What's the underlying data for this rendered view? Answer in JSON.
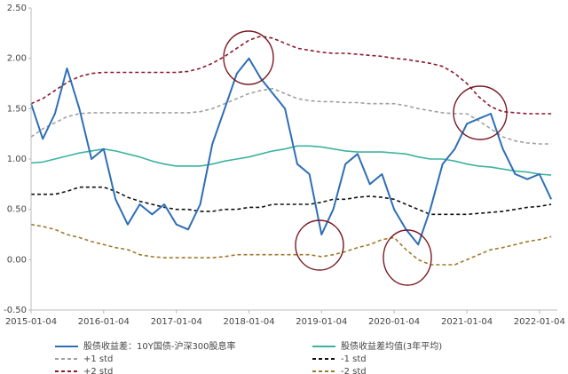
{
  "chart_data": {
    "type": "line",
    "x": [
      "2015-01-04",
      "2015-03-04",
      "2015-05-04",
      "2015-07-04",
      "2015-09-04",
      "2015-11-04",
      "2016-01-04",
      "2016-03-04",
      "2016-05-04",
      "2016-07-04",
      "2016-09-04",
      "2016-11-04",
      "2017-01-04",
      "2017-03-04",
      "2017-05-04",
      "2017-07-04",
      "2017-09-04",
      "2017-11-04",
      "2018-01-04",
      "2018-03-04",
      "2018-05-04",
      "2018-07-04",
      "2018-09-04",
      "2018-11-04",
      "2019-01-04",
      "2019-03-04",
      "2019-05-04",
      "2019-07-04",
      "2019-09-04",
      "2019-11-04",
      "2020-01-04",
      "2020-03-04",
      "2020-05-04",
      "2020-07-04",
      "2020-09-04",
      "2020-11-04",
      "2021-01-04",
      "2021-03-04",
      "2021-05-04",
      "2021-07-04",
      "2021-09-04",
      "2021-11-04",
      "2022-01-04",
      "2022-03-04"
    ],
    "series": [
      {
        "name": "股债收益差：10Y国债-沪深300股息率",
        "color": "#2e6fb5",
        "style": "solid",
        "width": 2,
        "values": [
          1.55,
          1.2,
          1.45,
          1.9,
          1.5,
          1.0,
          1.1,
          0.6,
          0.35,
          0.55,
          0.45,
          0.55,
          0.35,
          0.3,
          0.55,
          1.15,
          1.5,
          1.85,
          2.0,
          1.8,
          1.65,
          1.5,
          0.95,
          0.85,
          0.25,
          0.5,
          0.95,
          1.05,
          0.75,
          0.85,
          0.5,
          0.3,
          0.15,
          0.5,
          0.95,
          1.1,
          1.35,
          1.4,
          1.45,
          1.1,
          0.85,
          0.8,
          0.85,
          0.6
        ]
      },
      {
        "name": "股债收益差均值(3年平均)",
        "color": "#3db39e",
        "style": "solid",
        "width": 1.6,
        "values": [
          0.96,
          0.97,
          1.0,
          1.03,
          1.06,
          1.08,
          1.1,
          1.08,
          1.05,
          1.02,
          0.98,
          0.95,
          0.93,
          0.93,
          0.93,
          0.95,
          0.98,
          1.0,
          1.02,
          1.05,
          1.08,
          1.1,
          1.13,
          1.13,
          1.12,
          1.1,
          1.08,
          1.07,
          1.07,
          1.07,
          1.06,
          1.05,
          1.02,
          1.0,
          1.0,
          0.98,
          0.95,
          0.93,
          0.92,
          0.9,
          0.88,
          0.87,
          0.85,
          0.84
        ]
      },
      {
        "name": "+1 std",
        "color": "#a0a0a0",
        "style": "dashed",
        "width": 1.6,
        "values": [
          1.22,
          1.3,
          1.36,
          1.42,
          1.45,
          1.46,
          1.46,
          1.46,
          1.46,
          1.46,
          1.46,
          1.46,
          1.46,
          1.46,
          1.47,
          1.5,
          1.55,
          1.6,
          1.65,
          1.68,
          1.7,
          1.65,
          1.6,
          1.58,
          1.57,
          1.57,
          1.56,
          1.56,
          1.55,
          1.55,
          1.55,
          1.53,
          1.5,
          1.48,
          1.46,
          1.45,
          1.45,
          1.38,
          1.3,
          1.22,
          1.18,
          1.16,
          1.15,
          1.15
        ]
      },
      {
        "name": "-1 std",
        "color": "#111111",
        "style": "dashed",
        "width": 1.6,
        "values": [
          0.65,
          0.65,
          0.65,
          0.68,
          0.72,
          0.72,
          0.72,
          0.68,
          0.62,
          0.58,
          0.55,
          0.52,
          0.5,
          0.5,
          0.48,
          0.48,
          0.5,
          0.5,
          0.52,
          0.52,
          0.55,
          0.55,
          0.55,
          0.55,
          0.57,
          0.6,
          0.6,
          0.62,
          0.63,
          0.62,
          0.6,
          0.55,
          0.5,
          0.45,
          0.45,
          0.45,
          0.45,
          0.46,
          0.47,
          0.48,
          0.5,
          0.52,
          0.53,
          0.55
        ]
      },
      {
        "name": "+2 std",
        "color": "#8b1a2b",
        "style": "dashed",
        "width": 1.6,
        "values": [
          1.55,
          1.6,
          1.68,
          1.76,
          1.82,
          1.85,
          1.86,
          1.86,
          1.86,
          1.86,
          1.86,
          1.86,
          1.86,
          1.87,
          1.9,
          1.95,
          2.02,
          2.1,
          2.18,
          2.22,
          2.2,
          2.15,
          2.1,
          2.08,
          2.06,
          2.05,
          2.05,
          2.04,
          2.03,
          2.02,
          2.0,
          1.99,
          1.97,
          1.95,
          1.92,
          1.85,
          1.75,
          1.62,
          1.52,
          1.47,
          1.46,
          1.45,
          1.45,
          1.45
        ]
      },
      {
        "name": "-2 std",
        "color": "#a0782a",
        "style": "dashed",
        "width": 1.6,
        "values": [
          0.35,
          0.33,
          0.3,
          0.25,
          0.22,
          0.18,
          0.15,
          0.12,
          0.1,
          0.05,
          0.03,
          0.02,
          0.02,
          0.02,
          0.02,
          0.02,
          0.03,
          0.05,
          0.05,
          0.05,
          0.05,
          0.05,
          0.05,
          0.05,
          0.03,
          0.05,
          0.08,
          0.12,
          0.15,
          0.2,
          0.22,
          0.1,
          0.0,
          -0.05,
          -0.05,
          -0.05,
          0.0,
          0.05,
          0.1,
          0.12,
          0.15,
          0.18,
          0.2,
          0.23
        ]
      }
    ],
    "xlim": [
      "2015-01-04",
      "2022-04-04"
    ],
    "xticks": [
      "2015-01-04",
      "2016-01-04",
      "2017-01-04",
      "2018-01-04",
      "2019-01-04",
      "2020-01-04",
      "2021-01-04",
      "2022-01-04"
    ],
    "ylim": [
      -0.5,
      2.5
    ],
    "yticks": [
      {
        "value": -0.5,
        "label": "-0.50"
      },
      {
        "value": 0,
        "label": "0.00"
      },
      {
        "value": 0.5,
        "label": "0.50"
      },
      {
        "value": 1,
        "label": "1.00"
      },
      {
        "value": 1.5,
        "label": "1.50"
      },
      {
        "value": 2,
        "label": "2.00"
      },
      {
        "value": 2.5,
        "label": "2.50"
      }
    ],
    "grid": false
  }
}
